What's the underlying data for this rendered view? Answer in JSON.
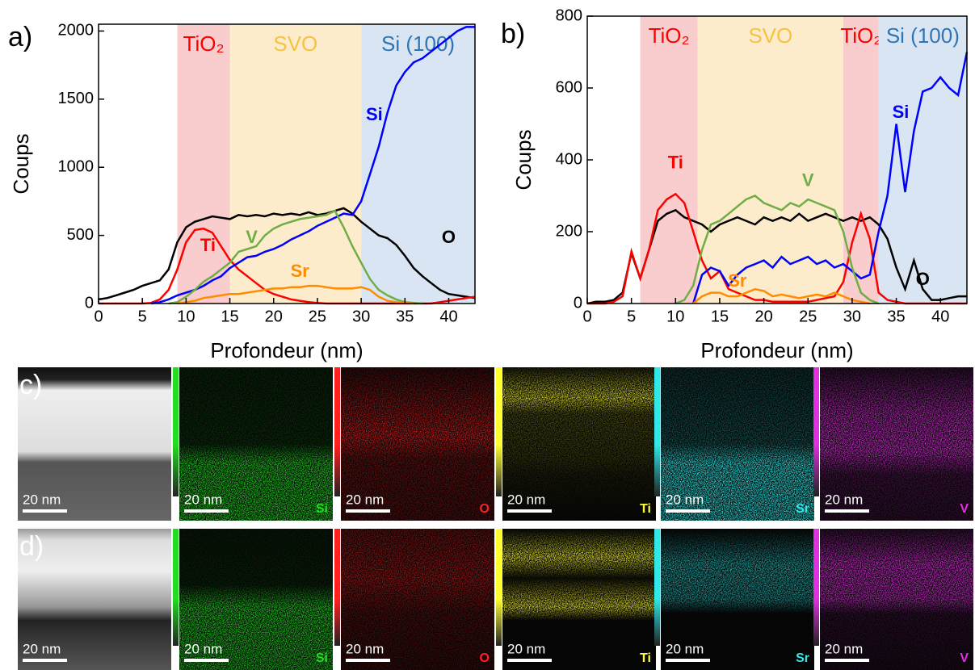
{
  "chart_data": [
    {
      "type": "line",
      "panel_label": "a)",
      "xlabel": "Profondeur (nm)",
      "ylabel": "Coups",
      "xlim": [
        0,
        43
      ],
      "xticks": [
        0,
        5,
        10,
        15,
        20,
        25,
        30,
        35,
        40
      ],
      "ylim": [
        0,
        2050
      ],
      "yticks": [
        0,
        500,
        1000,
        1500,
        2000
      ],
      "regions": [
        {
          "label": "TiO₂",
          "start": 9,
          "end": 15,
          "color": "#f9cdcd",
          "text_color": "#ff0000"
        },
        {
          "label": "SVO",
          "start": 15,
          "end": 30,
          "color": "#fdeccc",
          "text_color": "#f5c242"
        },
        {
          "label": "Si (100)",
          "start": 30,
          "end": 43,
          "color": "#d9e5f2",
          "text_color": "#2e75b6"
        }
      ],
      "x": [
        0,
        1,
        2,
        3,
        4,
        5,
        6,
        7,
        8,
        9,
        10,
        11,
        12,
        13,
        14,
        15,
        16,
        17,
        18,
        19,
        20,
        21,
        22,
        23,
        24,
        25,
        26,
        27,
        28,
        29,
        30,
        31,
        32,
        33,
        34,
        35,
        36,
        37,
        38,
        39,
        40,
        41,
        42,
        43
      ],
      "series": [
        {
          "name": "O",
          "color": "#000000",
          "values": [
            30,
            40,
            60,
            80,
            100,
            130,
            150,
            170,
            250,
            450,
            560,
            600,
            620,
            640,
            630,
            620,
            650,
            640,
            650,
            640,
            660,
            650,
            660,
            650,
            670,
            650,
            660,
            680,
            700,
            660,
            600,
            550,
            500,
            480,
            430,
            350,
            260,
            200,
            150,
            100,
            70,
            60,
            50,
            40
          ]
        },
        {
          "name": "Ti",
          "color": "#ff0000",
          "values": [
            0,
            0,
            0,
            0,
            0,
            0,
            5,
            30,
            100,
            250,
            450,
            540,
            550,
            520,
            420,
            320,
            250,
            200,
            150,
            100,
            70,
            50,
            30,
            20,
            10,
            5,
            0,
            0,
            0,
            0,
            0,
            0,
            0,
            0,
            0,
            0,
            0,
            0,
            0,
            10,
            20,
            30,
            40,
            50
          ]
        },
        {
          "name": "Si",
          "color": "#0000ff",
          "values": [
            null,
            null,
            null,
            null,
            null,
            null,
            0,
            10,
            30,
            60,
            80,
            100,
            130,
            170,
            200,
            260,
            300,
            340,
            350,
            380,
            400,
            430,
            470,
            500,
            530,
            570,
            600,
            630,
            660,
            650,
            750,
            950,
            1150,
            1400,
            1600,
            1700,
            1770,
            1800,
            1850,
            1900,
            1950,
            2000,
            2030,
            2030
          ]
        },
        {
          "name": "V",
          "color": "#70ad47",
          "values": [
            null,
            null,
            null,
            null,
            null,
            null,
            null,
            null,
            0,
            10,
            50,
            100,
            160,
            200,
            250,
            300,
            380,
            400,
            420,
            500,
            550,
            580,
            600,
            620,
            630,
            640,
            650,
            680,
            560,
            420,
            300,
            180,
            100,
            60,
            30,
            10,
            5,
            0,
            null,
            null,
            null,
            null,
            null,
            null
          ]
        },
        {
          "name": "Sr",
          "color": "#ff8c00",
          "values": [
            null,
            null,
            null,
            null,
            null,
            null,
            null,
            null,
            null,
            0,
            10,
            20,
            40,
            50,
            60,
            70,
            70,
            80,
            90,
            100,
            110,
            110,
            120,
            120,
            130,
            130,
            120,
            110,
            110,
            110,
            120,
            100,
            50,
            20,
            10,
            5,
            0,
            null,
            null,
            null,
            null,
            null,
            null,
            null
          ]
        }
      ]
    },
    {
      "type": "line",
      "panel_label": "b)",
      "xlabel": "Profondeur (nm)",
      "ylabel": "Coups",
      "xlim": [
        0,
        43
      ],
      "xticks": [
        0,
        5,
        10,
        15,
        20,
        25,
        30,
        35,
        40
      ],
      "ylim": [
        0,
        800
      ],
      "yticks": [
        0,
        200,
        400,
        600,
        800
      ],
      "regions": [
        {
          "label": "TiO₂",
          "start": 6,
          "end": 12.5,
          "color": "#f9cdcd",
          "text_color": "#ff0000"
        },
        {
          "label": "SVO",
          "start": 12.5,
          "end": 29,
          "color": "#fdeccc",
          "text_color": "#f5c242"
        },
        {
          "label": "TiO₂",
          "start": 29,
          "end": 33,
          "color": "#f9cdcd",
          "text_color": "#ff0000"
        },
        {
          "label": "Si (100)",
          "start": 33,
          "end": 43,
          "color": "#d9e5f2",
          "text_color": "#2e75b6"
        }
      ],
      "x": [
        0,
        1,
        2,
        3,
        4,
        5,
        6,
        7,
        8,
        9,
        10,
        11,
        12,
        13,
        14,
        15,
        16,
        17,
        18,
        19,
        20,
        21,
        22,
        23,
        24,
        25,
        26,
        27,
        28,
        29,
        30,
        31,
        32,
        33,
        34,
        35,
        36,
        37,
        38,
        39,
        40,
        41,
        42,
        43
      ],
      "series": [
        {
          "name": "O",
          "color": "#000000",
          "values": [
            0,
            5,
            5,
            10,
            30,
            140,
            70,
            150,
            230,
            250,
            260,
            240,
            230,
            220,
            200,
            220,
            230,
            240,
            230,
            220,
            240,
            230,
            240,
            230,
            250,
            230,
            240,
            250,
            240,
            230,
            240,
            230,
            240,
            220,
            180,
            100,
            40,
            120,
            40,
            10,
            10,
            15,
            20,
            20
          ]
        },
        {
          "name": "Ti",
          "color": "#ff0000",
          "values": [
            0,
            0,
            0,
            5,
            20,
            145,
            70,
            150,
            260,
            290,
            305,
            280,
            200,
            120,
            70,
            90,
            40,
            30,
            20,
            10,
            10,
            5,
            5,
            5,
            5,
            5,
            10,
            15,
            20,
            60,
            170,
            250,
            180,
            30,
            10,
            5,
            0,
            0,
            0,
            0,
            0,
            0,
            0,
            0
          ]
        },
        {
          "name": "Si",
          "color": "#0000ff",
          "values": [
            null,
            null,
            null,
            null,
            null,
            null,
            null,
            null,
            null,
            null,
            null,
            null,
            0,
            80,
            100,
            90,
            50,
            80,
            100,
            110,
            120,
            100,
            130,
            110,
            120,
            130,
            110,
            120,
            100,
            110,
            90,
            70,
            80,
            200,
            300,
            500,
            310,
            480,
            590,
            600,
            630,
            600,
            580,
            700
          ]
        },
        {
          "name": "V",
          "color": "#70ad47",
          "values": [
            null,
            null,
            null,
            null,
            null,
            null,
            null,
            null,
            null,
            null,
            0,
            10,
            50,
            150,
            220,
            230,
            250,
            270,
            290,
            300,
            280,
            270,
            260,
            280,
            270,
            290,
            280,
            270,
            260,
            200,
            100,
            30,
            10,
            0,
            null,
            null,
            null,
            null,
            null,
            null,
            null,
            null,
            null,
            null
          ]
        },
        {
          "name": "Sr",
          "color": "#ff8c00",
          "values": [
            null,
            null,
            null,
            null,
            null,
            null,
            null,
            null,
            null,
            null,
            null,
            null,
            0,
            20,
            30,
            30,
            20,
            20,
            30,
            40,
            35,
            20,
            25,
            20,
            15,
            20,
            25,
            20,
            30,
            20,
            10,
            5,
            0,
            null,
            null,
            null,
            null,
            null,
            null,
            null,
            null,
            null,
            null,
            null
          ]
        }
      ]
    }
  ],
  "panels": [
    {
      "label": "c)",
      "scale_bar": "20 nm",
      "elements": [
        "Si",
        "O",
        "Ti",
        "Sr",
        "V"
      ]
    },
    {
      "label": "d)",
      "scale_bar": "20 nm",
      "elements": [
        "Si",
        "O",
        "Ti",
        "Sr",
        "V"
      ]
    }
  ]
}
